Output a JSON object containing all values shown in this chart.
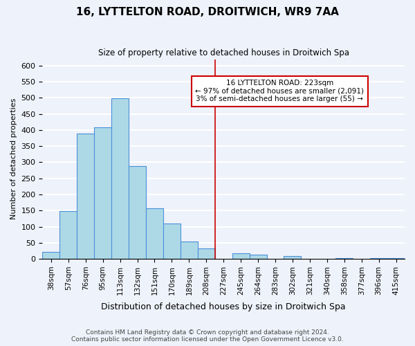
{
  "title": "16, LYTTELTON ROAD, DROITWICH, WR9 7AA",
  "subtitle": "Size of property relative to detached houses in Droitwich Spa",
  "xlabel": "Distribution of detached houses by size in Droitwich Spa",
  "ylabel": "Number of detached properties",
  "bar_labels": [
    "38sqm",
    "57sqm",
    "76sqm",
    "95sqm",
    "113sqm",
    "132sqm",
    "151sqm",
    "170sqm",
    "189sqm",
    "208sqm",
    "227sqm",
    "245sqm",
    "264sqm",
    "283sqm",
    "302sqm",
    "321sqm",
    "340sqm",
    "358sqm",
    "377sqm",
    "396sqm",
    "415sqm"
  ],
  "bar_values": [
    22,
    148,
    390,
    408,
    498,
    288,
    157,
    109,
    54,
    33,
    0,
    17,
    12,
    0,
    8,
    0,
    0,
    3,
    0,
    3,
    3
  ],
  "bar_color": "#add8e6",
  "bar_edge_color": "#4a90d9",
  "vline_x": 9.52,
  "annotation_title": "16 LYTTELTON ROAD: 223sqm",
  "annotation_line1": "← 97% of detached houses are smaller (2,091)",
  "annotation_line2": "3% of semi-detached houses are larger (55) →",
  "ylim": [
    0,
    620
  ],
  "yticks": [
    0,
    50,
    100,
    150,
    200,
    250,
    300,
    350,
    400,
    450,
    500,
    550,
    600
  ],
  "footer_line1": "Contains HM Land Registry data © Crown copyright and database right 2024.",
  "footer_line2": "Contains public sector information licensed under the Open Government Licence v3.0.",
  "background_color": "#eef2fa",
  "grid_color": "#ffffff",
  "vline_color": "#cc0000"
}
